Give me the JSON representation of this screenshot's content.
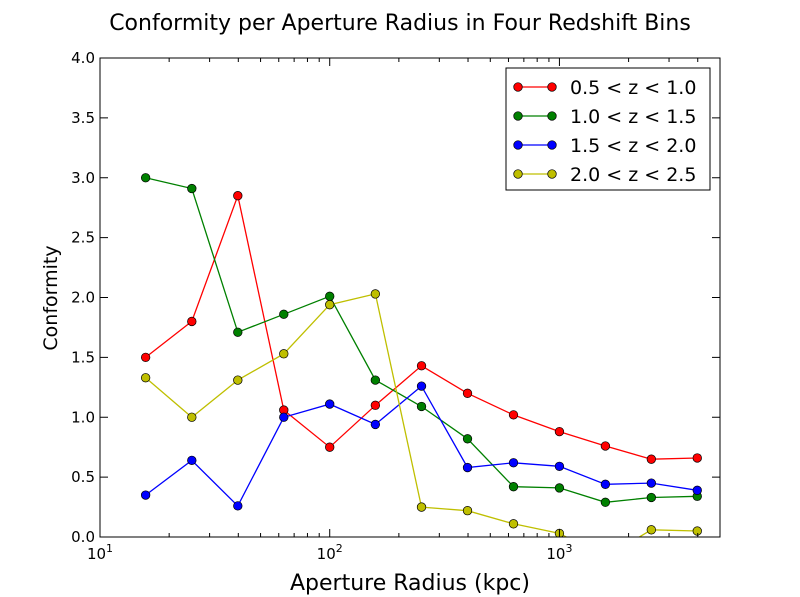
{
  "chart_data": {
    "type": "line",
    "title": "Conformity per Aperture Radius in Four Redshift Bins",
    "xlabel": "Aperture Radius (kpc)",
    "ylabel": "Conformity",
    "xscale": "log",
    "xlim": [
      10,
      5000
    ],
    "ylim": [
      0,
      4.0
    ],
    "x_ticks": [
      {
        "value": 10,
        "base": "10",
        "exp": "1"
      },
      {
        "value": 100,
        "base": "10",
        "exp": "2"
      },
      {
        "value": 1000,
        "base": "10",
        "exp": "3"
      }
    ],
    "y_ticks": [
      0,
      0.5,
      1.0,
      1.5,
      2.0,
      2.5,
      3.0,
      3.5,
      4.0
    ],
    "y_tick_labels": [
      "0.0",
      "0.5",
      "1.0",
      "1.5",
      "2.0",
      "2.5",
      "3.0",
      "3.5",
      "4.0"
    ],
    "grid": false,
    "legend_position": "top-right",
    "x": [
      15.8,
      25.1,
      39.8,
      63.1,
      100,
      158,
      251,
      398,
      631,
      1000,
      1585,
      2512,
      3981
    ],
    "series": [
      {
        "name": "0.5 < z < 1.0",
        "color": "#ff0000",
        "values": [
          1.5,
          1.8,
          2.85,
          1.06,
          0.75,
          1.1,
          1.43,
          1.2,
          1.02,
          0.88,
          0.76,
          0.65,
          0.66
        ]
      },
      {
        "name": "1.0 < z < 1.5",
        "color": "#008000",
        "values": [
          3.0,
          2.91,
          1.71,
          1.86,
          2.01,
          1.31,
          1.09,
          0.82,
          0.42,
          0.41,
          0.29,
          0.33,
          0.34
        ]
      },
      {
        "name": "1.5 < z < 2.0",
        "color": "#0000ff",
        "values": [
          0.35,
          0.64,
          0.26,
          1.0,
          1.11,
          0.94,
          1.26,
          0.58,
          0.62,
          0.59,
          0.44,
          0.45,
          0.39
        ]
      },
      {
        "name": "2.0 < z < 2.5",
        "color": "#bfbf00",
        "values": [
          1.33,
          1.0,
          1.31,
          1.53,
          1.94,
          2.03,
          0.25,
          0.22,
          0.11,
          0.03,
          -0.17,
          0.06,
          0.05
        ]
      }
    ]
  }
}
